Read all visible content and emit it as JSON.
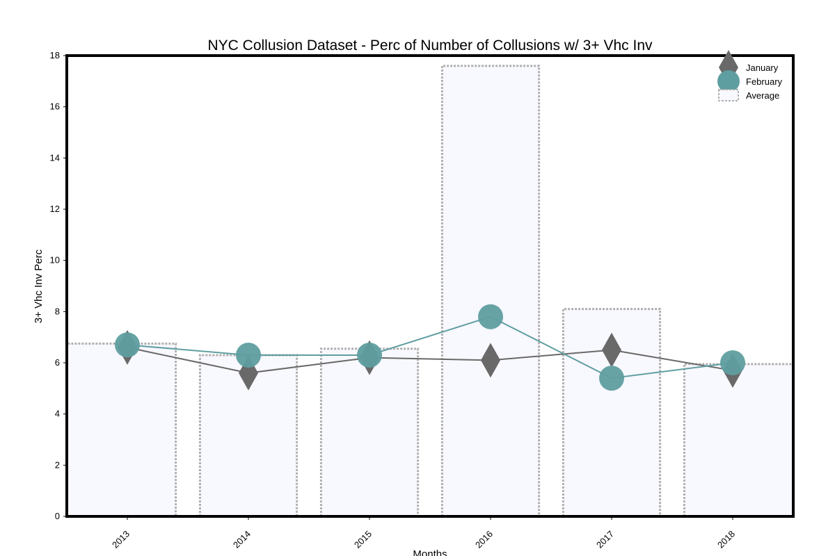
{
  "chart_data": {
    "type": "line",
    "title": "NYC Collusion Dataset - Perc of Number of Collusions w/ 3+ Vhc Inv",
    "xlabel": "Months",
    "ylabel": "3+ Vhc Inv Perc",
    "categories": [
      "2013",
      "2014",
      "2015",
      "2016",
      "2017",
      "2018"
    ],
    "ylim": [
      0,
      18
    ],
    "yticks": [
      "0",
      "2",
      "4",
      "6",
      "8",
      "10",
      "12",
      "14",
      "16",
      "18"
    ],
    "grid": false,
    "legend_position": "top-right",
    "series": [
      {
        "name": "January",
        "kind": "line-marker",
        "marker": "diamond",
        "color": "#696969",
        "values": [
          6.6,
          5.6,
          6.2,
          6.1,
          6.5,
          5.7
        ]
      },
      {
        "name": "February",
        "kind": "line-marker",
        "marker": "circle",
        "color": "#5f9ea0",
        "values": [
          6.7,
          6.3,
          6.3,
          7.8,
          5.4,
          6.0
        ]
      },
      {
        "name": "Average",
        "kind": "step-area",
        "color": "#b0b0b0",
        "fill": "#f8f8ff",
        "values": [
          6.75,
          6.3,
          6.55,
          17.6,
          8.1,
          5.95
        ]
      }
    ]
  }
}
